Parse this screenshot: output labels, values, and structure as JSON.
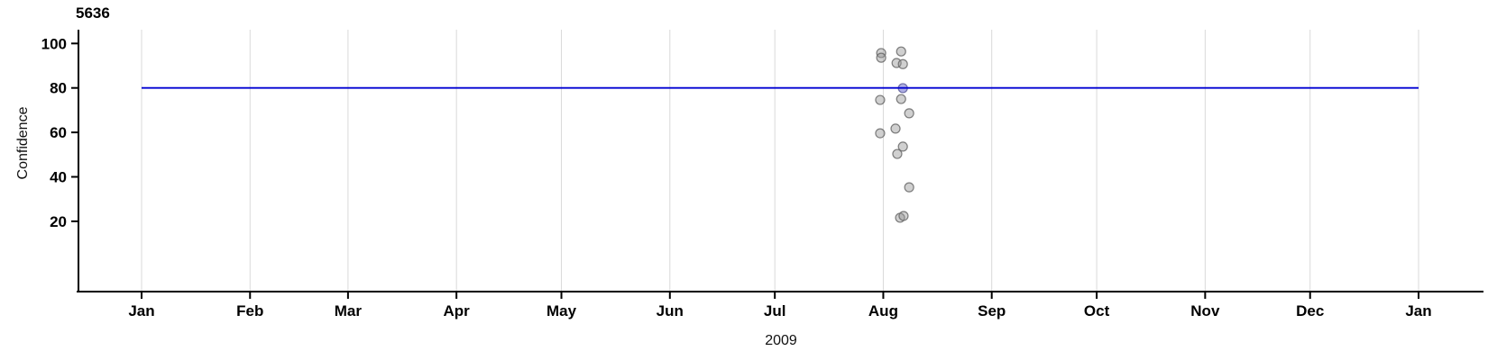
{
  "chart_data": {
    "type": "scatter",
    "title": "5636",
    "xlabel": "2009",
    "ylabel": "Confidence",
    "x_axis": {
      "unit": "day_of_year_2009",
      "tick_labels": [
        "Jan",
        "Feb",
        "Mar",
        "Apr",
        "May",
        "Jun",
        "Jul",
        "Aug",
        "Sep",
        "Oct",
        "Nov",
        "Dec",
        "Jan"
      ],
      "tick_days": [
        0,
        31,
        59,
        90,
        120,
        151,
        181,
        212,
        243,
        273,
        304,
        334,
        365
      ],
      "grid": true
    },
    "y_axis": {
      "tick_values": [
        100,
        80,
        60,
        40,
        20
      ],
      "range_shown": [
        -12,
        106
      ],
      "grid": false
    },
    "reference_line": {
      "confidence": 80,
      "span_days": [
        0,
        365
      ]
    },
    "points": [
      {
        "date": "2009-07-31",
        "day": 211.4,
        "confidence": 95.7
      },
      {
        "date": "2009-07-31",
        "day": 211.4,
        "confidence": 93.6
      },
      {
        "date": "2009-08-06",
        "day": 217.1,
        "confidence": 96.4
      },
      {
        "date": "2009-08-04",
        "day": 215.8,
        "confidence": 91.2
      },
      {
        "date": "2009-08-06",
        "day": 217.6,
        "confidence": 90.7
      },
      {
        "date": "2009-08-06",
        "day": 217.6,
        "confidence": 79.9,
        "on_line": true
      },
      {
        "date": "2009-08-06",
        "day": 217.1,
        "confidence": 75.0
      },
      {
        "date": "2009-07-31",
        "day": 211.1,
        "confidence": 74.6
      },
      {
        "date": "2009-08-08",
        "day": 219.4,
        "confidence": 68.6
      },
      {
        "date": "2009-08-04",
        "day": 215.5,
        "confidence": 61.7
      },
      {
        "date": "2009-07-31",
        "day": 211.1,
        "confidence": 59.6
      },
      {
        "date": "2009-08-06",
        "day": 217.6,
        "confidence": 53.6
      },
      {
        "date": "2009-08-05",
        "day": 216.0,
        "confidence": 50.3
      },
      {
        "date": "2009-08-08",
        "day": 219.4,
        "confidence": 35.3
      },
      {
        "date": "2009-08-05",
        "day": 216.8,
        "confidence": 21.6
      },
      {
        "date": "2009-08-06",
        "day": 217.8,
        "confidence": 22.4
      }
    ],
    "legend": null,
    "colors": {
      "reference_line": "#0000d2",
      "grid": "#d9d9d9",
      "axis": "#000000",
      "tick_label": "#000000",
      "point_fill": "rgba(150,150,150,0.45)",
      "point_stroke": "rgba(105,105,105,0.85)",
      "highlight_point_fill": "rgba(110,110,205,0.55)",
      "highlight_point_stroke": "rgba(100,100,160,0.9)"
    }
  }
}
